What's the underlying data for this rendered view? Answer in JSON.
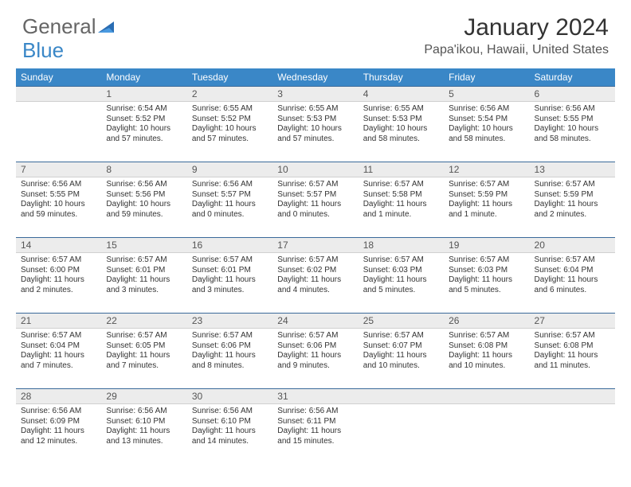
{
  "logo": {
    "text1": "General",
    "text2": "Blue",
    "text_color1": "#666666",
    "text_color2": "#3a87c7"
  },
  "title": "January 2024",
  "location": "Papa'ikou, Hawaii, United States",
  "header_bg": "#3a87c7",
  "header_fg": "#ffffff",
  "daynum_bg": "#ececec",
  "divider_color": "#3a6a9a",
  "weekdays": [
    "Sunday",
    "Monday",
    "Tuesday",
    "Wednesday",
    "Thursday",
    "Friday",
    "Saturday"
  ],
  "weeks": [
    [
      null,
      {
        "n": "1",
        "sunrise": "6:54 AM",
        "sunset": "5:52 PM",
        "daylight": "10 hours and 57 minutes."
      },
      {
        "n": "2",
        "sunrise": "6:55 AM",
        "sunset": "5:52 PM",
        "daylight": "10 hours and 57 minutes."
      },
      {
        "n": "3",
        "sunrise": "6:55 AM",
        "sunset": "5:53 PM",
        "daylight": "10 hours and 57 minutes."
      },
      {
        "n": "4",
        "sunrise": "6:55 AM",
        "sunset": "5:53 PM",
        "daylight": "10 hours and 58 minutes."
      },
      {
        "n": "5",
        "sunrise": "6:56 AM",
        "sunset": "5:54 PM",
        "daylight": "10 hours and 58 minutes."
      },
      {
        "n": "6",
        "sunrise": "6:56 AM",
        "sunset": "5:55 PM",
        "daylight": "10 hours and 58 minutes."
      }
    ],
    [
      {
        "n": "7",
        "sunrise": "6:56 AM",
        "sunset": "5:55 PM",
        "daylight": "10 hours and 59 minutes."
      },
      {
        "n": "8",
        "sunrise": "6:56 AM",
        "sunset": "5:56 PM",
        "daylight": "10 hours and 59 minutes."
      },
      {
        "n": "9",
        "sunrise": "6:56 AM",
        "sunset": "5:57 PM",
        "daylight": "11 hours and 0 minutes."
      },
      {
        "n": "10",
        "sunrise": "6:57 AM",
        "sunset": "5:57 PM",
        "daylight": "11 hours and 0 minutes."
      },
      {
        "n": "11",
        "sunrise": "6:57 AM",
        "sunset": "5:58 PM",
        "daylight": "11 hours and 1 minute."
      },
      {
        "n": "12",
        "sunrise": "6:57 AM",
        "sunset": "5:59 PM",
        "daylight": "11 hours and 1 minute."
      },
      {
        "n": "13",
        "sunrise": "6:57 AM",
        "sunset": "5:59 PM",
        "daylight": "11 hours and 2 minutes."
      }
    ],
    [
      {
        "n": "14",
        "sunrise": "6:57 AM",
        "sunset": "6:00 PM",
        "daylight": "11 hours and 2 minutes."
      },
      {
        "n": "15",
        "sunrise": "6:57 AM",
        "sunset": "6:01 PM",
        "daylight": "11 hours and 3 minutes."
      },
      {
        "n": "16",
        "sunrise": "6:57 AM",
        "sunset": "6:01 PM",
        "daylight": "11 hours and 3 minutes."
      },
      {
        "n": "17",
        "sunrise": "6:57 AM",
        "sunset": "6:02 PM",
        "daylight": "11 hours and 4 minutes."
      },
      {
        "n": "18",
        "sunrise": "6:57 AM",
        "sunset": "6:03 PM",
        "daylight": "11 hours and 5 minutes."
      },
      {
        "n": "19",
        "sunrise": "6:57 AM",
        "sunset": "6:03 PM",
        "daylight": "11 hours and 5 minutes."
      },
      {
        "n": "20",
        "sunrise": "6:57 AM",
        "sunset": "6:04 PM",
        "daylight": "11 hours and 6 minutes."
      }
    ],
    [
      {
        "n": "21",
        "sunrise": "6:57 AM",
        "sunset": "6:04 PM",
        "daylight": "11 hours and 7 minutes."
      },
      {
        "n": "22",
        "sunrise": "6:57 AM",
        "sunset": "6:05 PM",
        "daylight": "11 hours and 7 minutes."
      },
      {
        "n": "23",
        "sunrise": "6:57 AM",
        "sunset": "6:06 PM",
        "daylight": "11 hours and 8 minutes."
      },
      {
        "n": "24",
        "sunrise": "6:57 AM",
        "sunset": "6:06 PM",
        "daylight": "11 hours and 9 minutes."
      },
      {
        "n": "25",
        "sunrise": "6:57 AM",
        "sunset": "6:07 PM",
        "daylight": "11 hours and 10 minutes."
      },
      {
        "n": "26",
        "sunrise": "6:57 AM",
        "sunset": "6:08 PM",
        "daylight": "11 hours and 10 minutes."
      },
      {
        "n": "27",
        "sunrise": "6:57 AM",
        "sunset": "6:08 PM",
        "daylight": "11 hours and 11 minutes."
      }
    ],
    [
      {
        "n": "28",
        "sunrise": "6:56 AM",
        "sunset": "6:09 PM",
        "daylight": "11 hours and 12 minutes."
      },
      {
        "n": "29",
        "sunrise": "6:56 AM",
        "sunset": "6:10 PM",
        "daylight": "11 hours and 13 minutes."
      },
      {
        "n": "30",
        "sunrise": "6:56 AM",
        "sunset": "6:10 PM",
        "daylight": "11 hours and 14 minutes."
      },
      {
        "n": "31",
        "sunrise": "6:56 AM",
        "sunset": "6:11 PM",
        "daylight": "11 hours and 15 minutes."
      },
      null,
      null,
      null
    ]
  ],
  "labels": {
    "sunrise": "Sunrise:",
    "sunset": "Sunset:",
    "daylight": "Daylight:"
  }
}
